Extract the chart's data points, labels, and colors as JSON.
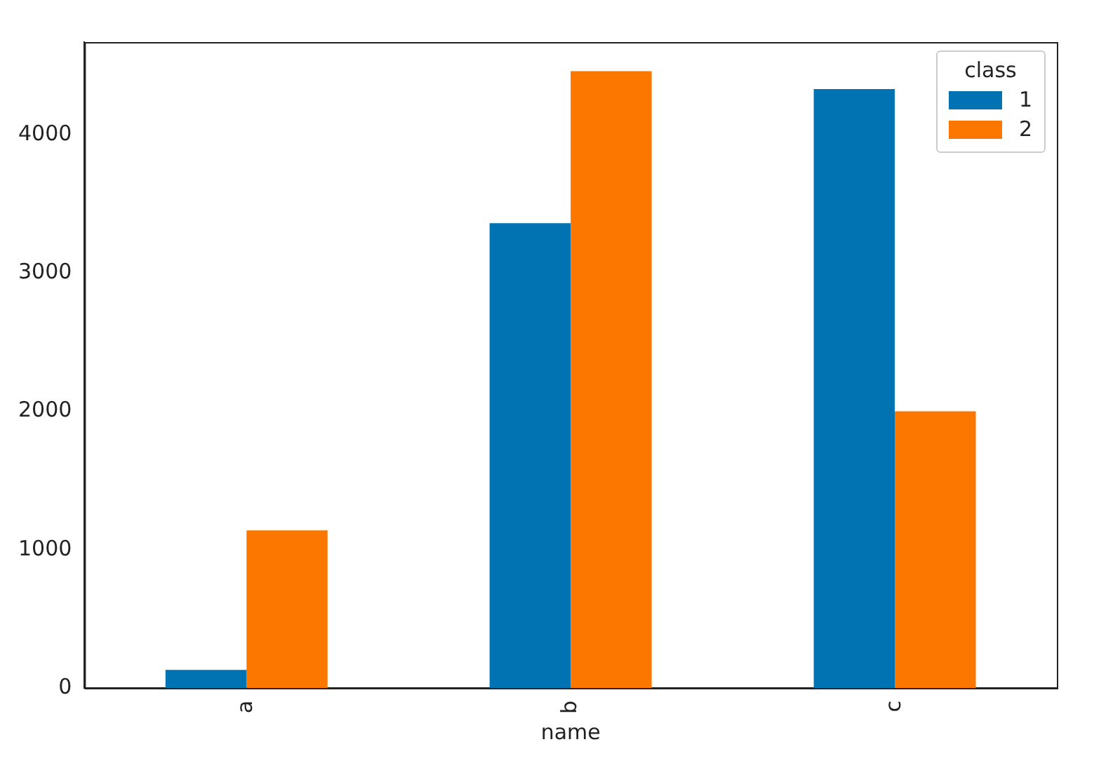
{
  "chart_data": {
    "type": "bar",
    "xlabel": "name",
    "legend_title": "class",
    "categories": [
      "a",
      "b",
      "c"
    ],
    "series": [
      {
        "name": "1",
        "color": "#0173b2",
        "values": [
          130,
          3360,
          4330
        ]
      },
      {
        "name": "2",
        "color": "#fb7700",
        "values": [
          1140,
          4460,
          2000
        ]
      }
    ],
    "ylim": [
      0,
      4670
    ],
    "yticks": [
      0,
      1000,
      2000,
      3000,
      4000
    ],
    "grid": false,
    "legend": "top right"
  }
}
